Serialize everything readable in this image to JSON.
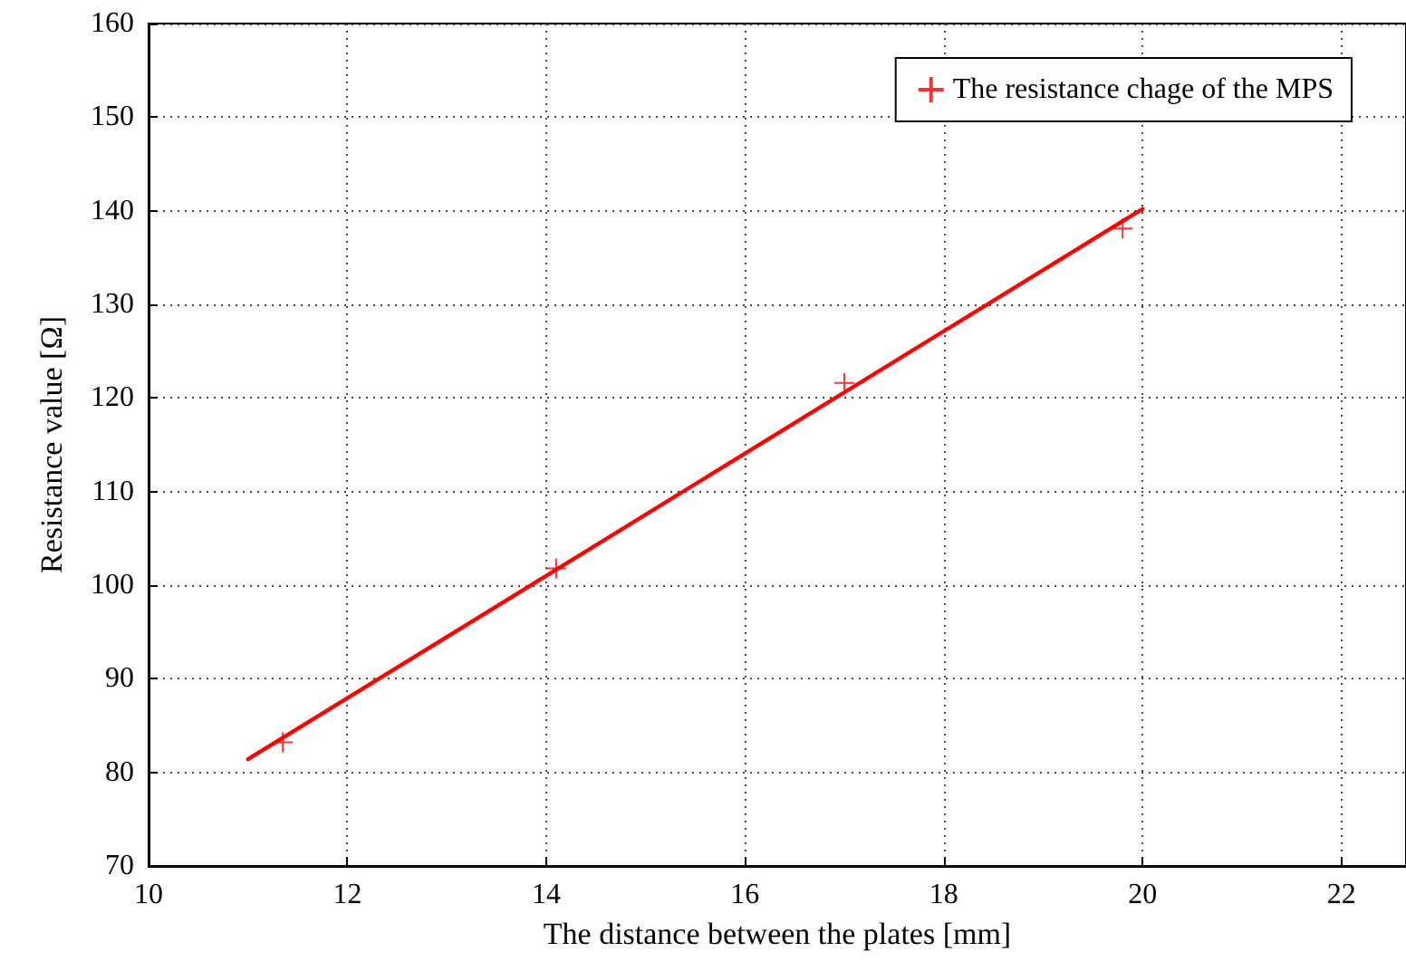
{
  "chart_data": {
    "type": "scatter",
    "xlabel": "The distance between the plates [mm]",
    "ylabel": "Resistance value [Ω]",
    "series": [
      {
        "name": "The resistance chage of the MPS",
        "color": "#ff0000",
        "x": [
          11.35,
          14.1,
          17.0,
          19.8
        ],
        "values": [
          83.2,
          101.8,
          121.6,
          138.1
        ],
        "marker": "cross"
      },
      {
        "type": "line",
        "color": "#ff0000",
        "x": [
          11,
          20
        ],
        "values": [
          81.4,
          140.2
        ],
        "marker": "none",
        "line_style": "solid"
      }
    ],
    "xlim": [
      10,
      22.65
    ],
    "xticks": [
      10,
      12,
      14,
      16,
      18,
      20,
      22
    ],
    "ylim": [
      70,
      160
    ],
    "yticks": [
      70,
      80,
      90,
      100,
      110,
      120,
      130,
      140,
      150,
      160
    ],
    "grid": true,
    "legend": "top right"
  }
}
